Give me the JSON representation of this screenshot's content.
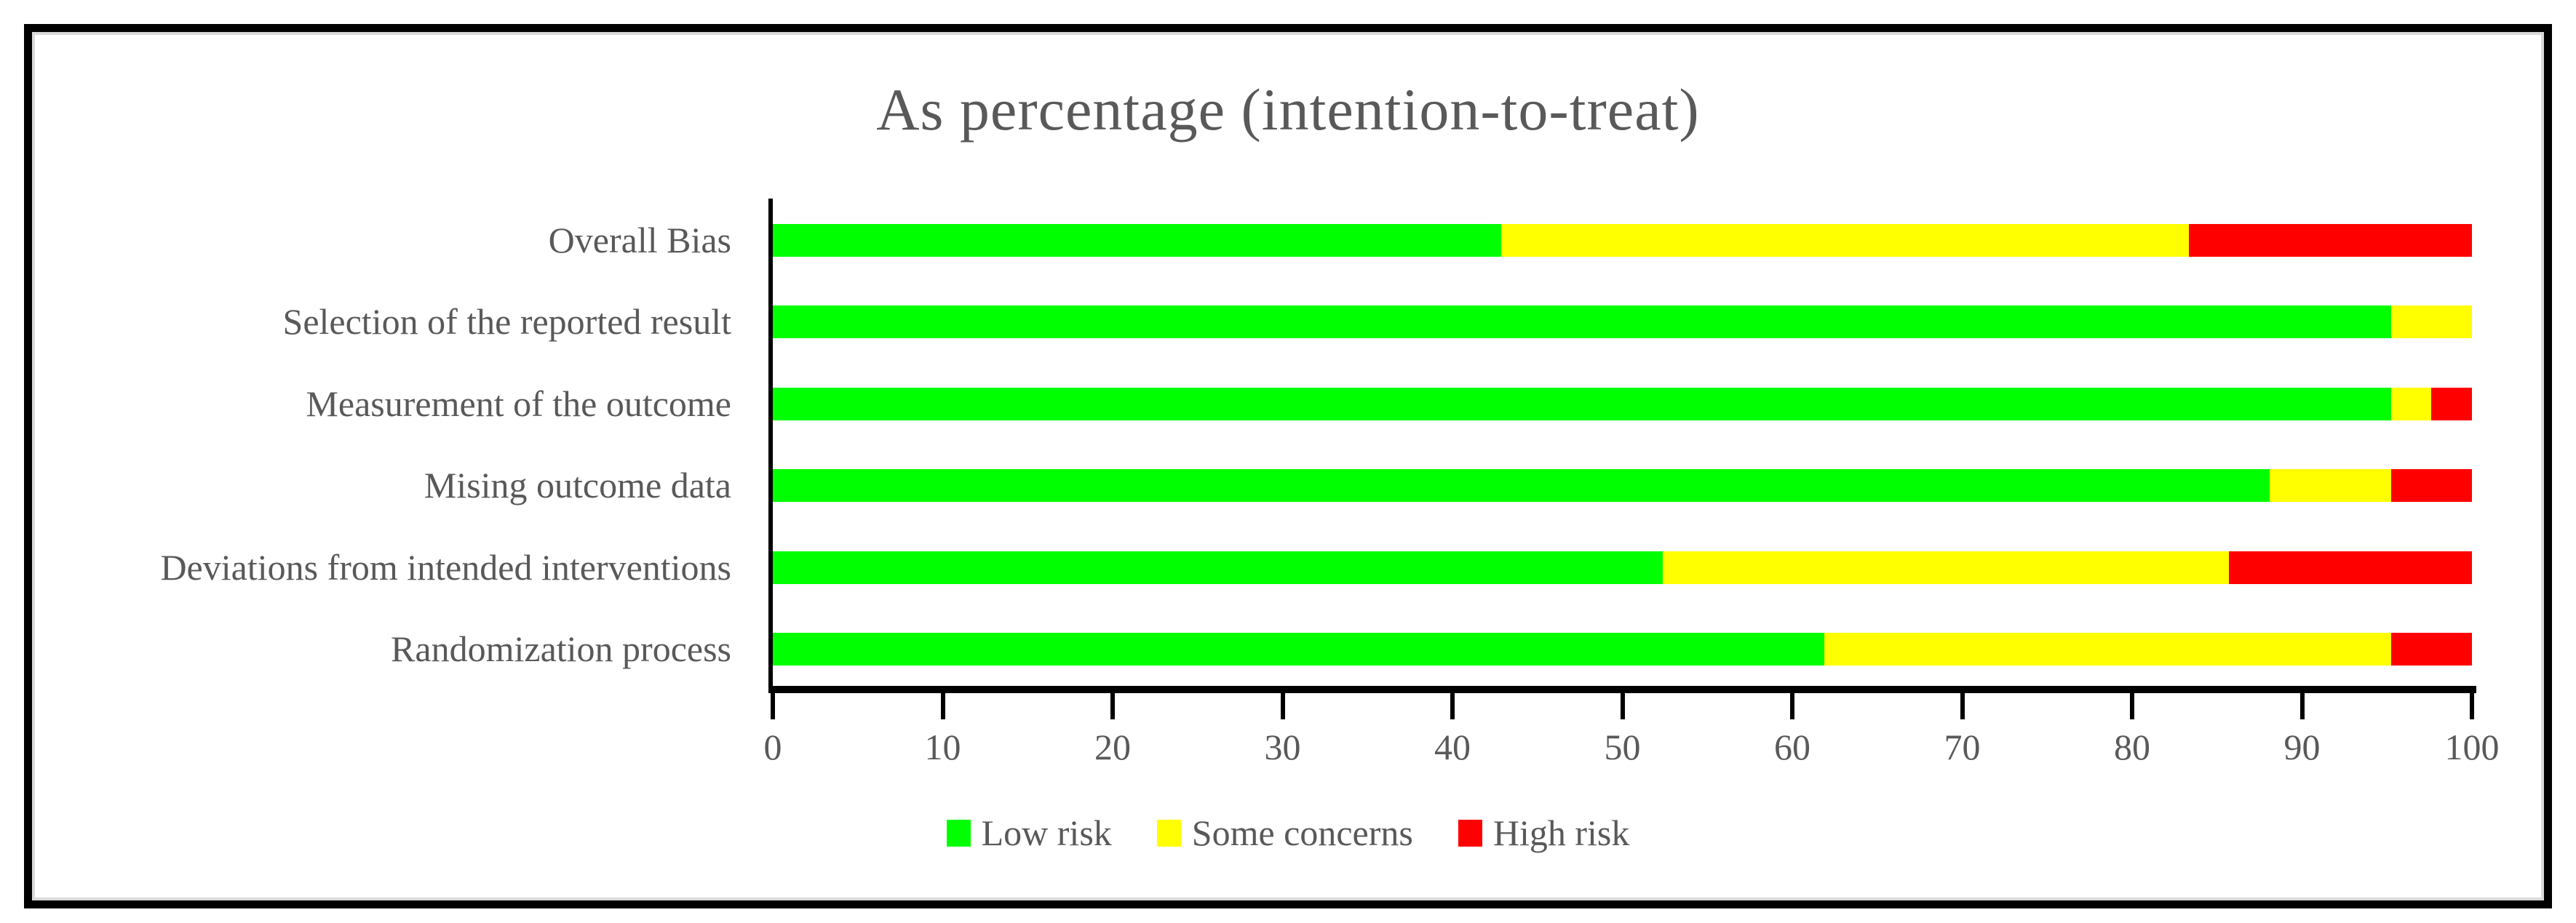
{
  "title": "As percentage (intention-to-treat)",
  "colors": {
    "low_risk": "#00FF00",
    "some_concerns": "#FFFF00",
    "high_risk": "#FF0000",
    "text": "#595959",
    "axis": "#000000",
    "frame": "#000000",
    "inner_border": "#D9D9D9"
  },
  "chart_data": {
    "type": "bar",
    "orientation": "horizontal",
    "stacked": true,
    "title": "As percentage (intention-to-treat)",
    "categories_top_to_bottom": [
      "Overall Bias",
      "Selection of the reported result",
      "Measurement of the outcome",
      "Mising outcome data",
      "Deviations from intended interventions",
      "Randomization process"
    ],
    "series": [
      {
        "name": "Low risk",
        "color": "#00FF00",
        "values": [
          42.86,
          95.24,
          95.24,
          88.1,
          52.38,
          61.9
        ]
      },
      {
        "name": "Some concerns",
        "color": "#FFFF00",
        "values": [
          40.48,
          4.76,
          2.38,
          7.14,
          33.33,
          33.33
        ]
      },
      {
        "name": "High risk",
        "color": "#FF0000",
        "values": [
          16.67,
          0,
          2.38,
          4.76,
          14.29,
          4.76
        ]
      }
    ],
    "xlim": [
      0,
      100
    ],
    "x_tick_labels": [
      "0",
      "10",
      "20",
      "30",
      "40",
      "50",
      "60",
      "70",
      "80",
      "90",
      "100"
    ],
    "grid": false,
    "legend_position": "bottom"
  }
}
